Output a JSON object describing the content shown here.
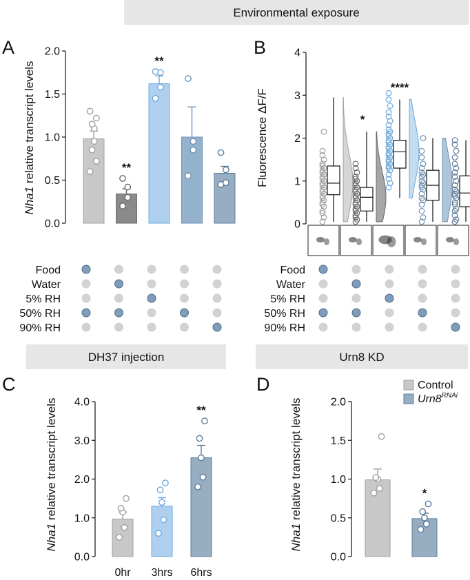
{
  "headers": {
    "top": "Environmental exposure",
    "bottom_left": "DH37 injection",
    "bottom_right": "Urn8 KD"
  },
  "panel_labels": {
    "a": "A",
    "b": "B",
    "c": "C",
    "d": "D"
  },
  "conditions": {
    "rows": [
      "Food",
      "Water",
      "5% RH",
      "50% RH",
      "90% RH"
    ],
    "matrix": [
      [
        1,
        0,
        0,
        1,
        0
      ],
      [
        0,
        1,
        0,
        1,
        0
      ],
      [
        0,
        0,
        1,
        0,
        0
      ],
      [
        0,
        0,
        0,
        1,
        0
      ],
      [
        0,
        0,
        0,
        0,
        1
      ]
    ]
  },
  "colors": {
    "gray_fill": "#c8c8c8",
    "gray_edge": "#a0a0a0",
    "dark_fill": "#8a8a8a",
    "dark_edge": "#6a6a6a",
    "light_blue_fill": "#aed0ee",
    "light_blue_edge": "#6ea9dc",
    "mid_blue_fill": "#95b2cc",
    "mid_blue_edge": "#6f93b5",
    "slate_fill": "#96adc2",
    "slate_edge": "#5f7d9a",
    "dot_on": "#7f9dbb",
    "dot_on_edge": "#536d88",
    "dot_off": "#d2d2d2"
  },
  "chart_data": [
    {
      "id": "A",
      "type": "bar",
      "ylabel_italic": "Nha1",
      "ylabel_rest": " relative transcript levels",
      "ylim": [
        0,
        2.0
      ],
      "yticks": [
        "0.0",
        "0.5",
        "1.0",
        "1.5",
        "2.0"
      ],
      "ytick_values": [
        0,
        0.5,
        1.0,
        1.5,
        2.0
      ],
      "bars": [
        {
          "value": 0.98,
          "sem": 0.09,
          "points": [
            0.6,
            0.72,
            0.85,
            0.95,
            1.1,
            1.15,
            1.22,
            1.3
          ],
          "sig": "",
          "color": "gray"
        },
        {
          "value": 0.34,
          "sem": 0.06,
          "points": [
            0.2,
            0.3,
            0.42,
            0.52
          ],
          "sig": "**",
          "color": "dark"
        },
        {
          "value": 1.62,
          "sem": 0.09,
          "points": [
            1.45,
            1.58,
            1.75,
            1.76
          ],
          "sig": "**",
          "color": "light_blue"
        },
        {
          "value": 1.0,
          "sem": 0.35,
          "points": [
            0.55,
            0.85,
            0.95,
            1.68
          ],
          "sig": "",
          "color": "mid_blue"
        },
        {
          "value": 0.58,
          "sem": 0.08,
          "points": [
            0.45,
            0.47,
            0.62,
            0.82
          ],
          "sig": "",
          "color": "slate"
        }
      ]
    },
    {
      "id": "B",
      "type": "violin_box",
      "ylabel": "Fluorescence ΔF/F",
      "ylim": [
        0,
        4
      ],
      "yticks": [
        "0",
        "1",
        "2",
        "3",
        "4"
      ],
      "ytick_values": [
        0,
        1,
        2,
        3,
        4
      ],
      "groups": [
        {
          "q1": 0.68,
          "median": 0.95,
          "q3": 1.35,
          "whisker_low": 0.05,
          "whisker_high": 2.95,
          "sig": "",
          "color": "gray",
          "points": [
            0.05,
            0.15,
            0.25,
            0.3,
            0.4,
            0.45,
            0.5,
            0.55,
            0.6,
            0.65,
            0.7,
            0.75,
            0.8,
            0.85,
            0.9,
            0.95,
            1.0,
            1.05,
            1.1,
            1.15,
            1.2,
            1.25,
            1.3,
            1.35,
            1.4,
            1.5,
            1.6,
            1.7,
            2.15
          ]
        },
        {
          "q1": 0.3,
          "median": 0.62,
          "q3": 0.85,
          "whisker_low": 0.05,
          "whisker_high": 2.15,
          "sig": "*",
          "color": "dark",
          "points": [
            0.05,
            0.1,
            0.15,
            0.2,
            0.25,
            0.3,
            0.35,
            0.4,
            0.45,
            0.5,
            0.55,
            0.6,
            0.65,
            0.7,
            0.75,
            0.8,
            0.85,
            0.9,
            0.95,
            1.0,
            1.05,
            1.1,
            1.2,
            1.3,
            1.4
          ]
        },
        {
          "q1": 1.3,
          "median": 1.68,
          "q3": 1.95,
          "whisker_low": 0.6,
          "whisker_high": 2.9,
          "sig": "****",
          "color": "light_blue",
          "points": [
            0.85,
            0.95,
            1.05,
            1.15,
            1.25,
            1.3,
            1.35,
            1.4,
            1.45,
            1.5,
            1.55,
            1.6,
            1.65,
            1.7,
            1.75,
            1.8,
            1.85,
            1.9,
            1.95,
            2.0,
            2.05,
            2.1,
            2.15,
            2.2,
            2.3,
            2.4,
            2.5,
            2.6,
            2.75,
            2.9,
            3.05
          ]
        },
        {
          "q1": 0.55,
          "median": 0.9,
          "q3": 1.25,
          "whisker_low": 0.05,
          "whisker_high": 2.0,
          "sig": "",
          "color": "mid_blue",
          "points": [
            0.05,
            0.15,
            0.3,
            0.45,
            0.55,
            0.6,
            0.7,
            0.8,
            0.85,
            0.9,
            0.95,
            1.0,
            1.1,
            1.15,
            1.2,
            1.3,
            1.4,
            1.55,
            1.7,
            2.0
          ]
        },
        {
          "q1": 0.4,
          "median": 0.72,
          "q3": 1.12,
          "whisker_low": 0.05,
          "whisker_high": 1.95,
          "sig": "",
          "color": "slate",
          "points": [
            0.05,
            0.1,
            0.2,
            0.3,
            0.35,
            0.45,
            0.5,
            0.6,
            0.65,
            0.7,
            0.75,
            0.8,
            0.9,
            1.0,
            1.1,
            1.2,
            1.3,
            1.4,
            1.55,
            1.7,
            1.85,
            1.95
          ]
        }
      ]
    },
    {
      "id": "C",
      "type": "bar",
      "ylabel_italic": "Nha1",
      "ylabel_rest": " relative transcript levels",
      "ylim": [
        0,
        4.0
      ],
      "yticks": [
        "0.0",
        "1.0",
        "2.0",
        "3.0",
        "4.0"
      ],
      "ytick_values": [
        0,
        1.0,
        2.0,
        3.0,
        4.0
      ],
      "categories": [
        "0hr",
        "3hrs",
        "6hrs"
      ],
      "bars": [
        {
          "value": 0.97,
          "sem": 0.18,
          "points": [
            0.5,
            0.75,
            1.15,
            1.25,
            1.5
          ],
          "sig": "",
          "color": "gray"
        },
        {
          "value": 1.3,
          "sem": 0.22,
          "points": [
            0.6,
            0.95,
            1.4,
            1.72,
            1.9
          ],
          "sig": "",
          "color": "light_blue"
        },
        {
          "value": 2.55,
          "sem": 0.32,
          "points": [
            1.8,
            2.05,
            2.55,
            3.05,
            3.5
          ],
          "sig": "**",
          "color": "slate"
        }
      ]
    },
    {
      "id": "D",
      "type": "bar",
      "ylabel_italic": "Nha1",
      "ylabel_rest": " relative transcript levels",
      "ylim": [
        0,
        2.0
      ],
      "yticks": [
        "0.0",
        "0.5",
        "1.0",
        "1.5",
        "2.0"
      ],
      "ytick_values": [
        0,
        0.5,
        1.0,
        1.5,
        2.0
      ],
      "legend": [
        {
          "label": "Control",
          "sup": "",
          "italic": false,
          "color": "gray"
        },
        {
          "label": "Urn8",
          "sup": "RNAi",
          "italic": true,
          "color": "slate"
        }
      ],
      "bars": [
        {
          "value": 0.99,
          "sem": 0.14,
          "points": [
            0.82,
            0.88,
            1.0,
            1.02,
            1.55
          ],
          "sig": "",
          "color": "gray"
        },
        {
          "value": 0.49,
          "sem": 0.07,
          "points": [
            0.35,
            0.42,
            0.5,
            0.58,
            0.68
          ],
          "sig": "*",
          "color": "slate"
        }
      ]
    }
  ]
}
